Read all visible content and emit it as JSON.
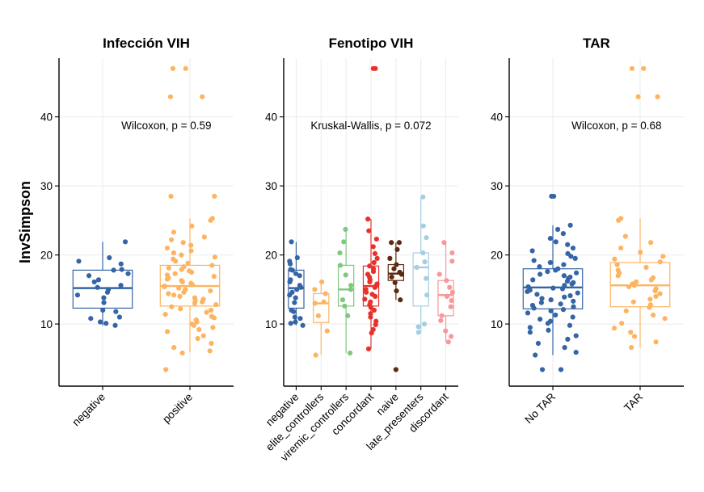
{
  "ylabel": "InvSimpson",
  "chart_data": [
    {
      "type": "box",
      "title": "Infección VIH",
      "xlabel": "",
      "ylabel": "InvSimpson",
      "ylim": [
        1.0,
        48.5
      ],
      "yticks": [
        10,
        20,
        30,
        40
      ],
      "grid": true,
      "annotation": "Wilcoxon, p = 0.59",
      "annotation_xy": [
        1.73,
        38.8
      ],
      "categories": [
        "negative",
        "positive"
      ],
      "colors": [
        "#3565a6",
        "#fdb462"
      ],
      "boxes": [
        {
          "min": 9.8,
          "q1": 12.3,
          "median": 15.2,
          "q3": 17.8,
          "max": 21.9
        },
        {
          "min": 5.9,
          "q1": 12.6,
          "median": 15.5,
          "q3": 18.5,
          "max": 25.3
        }
      ],
      "points": [
        [
          9.8,
          10.1,
          10.3,
          10.8,
          11.0,
          11.8,
          12.0,
          13.1,
          13.8,
          14.2,
          14.6,
          15.0,
          15.3,
          15.6,
          16.1,
          16.4,
          17.0,
          17.3,
          17.8,
          17.9,
          18.7,
          19.1,
          19.6,
          21.9
        ],
        [
          3.4,
          5.8,
          6.1,
          6.6,
          7.2,
          7.9,
          8.3,
          8.9,
          9.2,
          9.5,
          9.8,
          10.0,
          10.3,
          10.6,
          10.9,
          11.1,
          11.4,
          11.7,
          12.0,
          12.2,
          12.5,
          12.8,
          13.0,
          13.2,
          13.4,
          13.6,
          13.8,
          14.0,
          14.2,
          14.4,
          14.6,
          14.8,
          15.0,
          15.2,
          15.4,
          15.5,
          15.7,
          15.9,
          16.1,
          16.3,
          16.5,
          16.7,
          16.9,
          17.1,
          17.3,
          17.5,
          17.7,
          17.9,
          18.1,
          18.3,
          18.5,
          18.8,
          19.1,
          19.4,
          19.7,
          20.0,
          20.3,
          20.6,
          21.0,
          21.4,
          21.8,
          22.2,
          22.6,
          23.3,
          24.2,
          25.0,
          25.3,
          28.5,
          28.5,
          42.9,
          42.9,
          47.0,
          47.0
        ]
      ]
    },
    {
      "type": "box",
      "title": "Fenotipo VIH",
      "xlabel": "",
      "ylabel": "",
      "ylim": [
        1.0,
        48.5
      ],
      "yticks": [
        10,
        20,
        30,
        40
      ],
      "grid": true,
      "annotation": "Kruskal-Wallis, p = 0.072",
      "annotation_xy": [
        4.0,
        38.8
      ],
      "categories": [
        "negative",
        "elite_controllers",
        "viremic_controllers",
        "concordant",
        "naive",
        "late_presenters",
        "discordant"
      ],
      "colors": [
        "#3565a6",
        "#fdb462",
        "#7fc97f",
        "#e8312a",
        "#5c2a0e",
        "#a6cee3",
        "#f6999b"
      ],
      "boxes": [
        {
          "min": 9.8,
          "q1": 12.3,
          "median": 15.2,
          "q3": 17.8,
          "max": 21.9
        },
        {
          "min": 5.5,
          "q1": 10.2,
          "median": 13.0,
          "q3": 14.4,
          "max": 16.1
        },
        {
          "min": 5.8,
          "q1": 12.6,
          "median": 15.0,
          "q3": 18.5,
          "max": 23.7
        },
        {
          "min": 6.4,
          "q1": 12.6,
          "median": 15.5,
          "q3": 18.4,
          "max": 25.2
        },
        {
          "min": 13.5,
          "q1": 16.3,
          "median": 17.3,
          "q3": 18.6,
          "max": 21.8
        },
        {
          "min": 8.8,
          "q1": 12.6,
          "median": 18.2,
          "q3": 20.3,
          "max": 28.4
        },
        {
          "min": 7.4,
          "q1": 11.2,
          "median": 14.2,
          "q3": 16.3,
          "max": 21.8
        }
      ],
      "points": [
        [
          9.8,
          10.1,
          10.3,
          10.8,
          11.0,
          11.8,
          12.0,
          13.1,
          13.8,
          14.2,
          14.6,
          15.0,
          15.3,
          15.6,
          16.1,
          16.4,
          17.0,
          17.3,
          17.8,
          17.9,
          18.7,
          19.1,
          19.6,
          21.9
        ],
        [
          5.5,
          9.0,
          11.2,
          13.0,
          13.2,
          14.4,
          15.0,
          16.1
        ],
        [
          5.8,
          11.2,
          12.6,
          13.5,
          15.0,
          15.6,
          17.1,
          18.5,
          20.3,
          21.9,
          23.7
        ],
        [
          6.4,
          8.7,
          9.2,
          9.9,
          10.4,
          11.0,
          11.5,
          12.0,
          12.4,
          12.8,
          13.2,
          13.6,
          14.0,
          14.3,
          14.6,
          15.0,
          15.3,
          15.5,
          15.8,
          16.1,
          16.4,
          16.8,
          17.2,
          17.6,
          18.0,
          18.4,
          18.9,
          19.5,
          20.2,
          21.2,
          22.3,
          23.5,
          25.2,
          47.0,
          47.0
        ],
        [
          3.4,
          13.5,
          14.8,
          16.0,
          16.8,
          17.2,
          17.5,
          18.0,
          18.6,
          19.5,
          20.8,
          21.8,
          21.8
        ],
        [
          8.8,
          9.6,
          10.0,
          14.2,
          16.6,
          18.2,
          19.0,
          20.3,
          22.5,
          24.2,
          28.4
        ],
        [
          7.4,
          8.2,
          9.0,
          10.5,
          11.2,
          12.5,
          13.4,
          14.0,
          14.6,
          15.3,
          16.3,
          17.2,
          19.1,
          20.3,
          21.8
        ]
      ]
    },
    {
      "type": "box",
      "title": "TAR",
      "xlabel": "",
      "ylabel": "",
      "ylim": [
        1.0,
        48.5
      ],
      "yticks": [
        10,
        20,
        30,
        40
      ],
      "grid": true,
      "annotation": "Wilcoxon, p = 0.68",
      "annotation_xy": [
        1.73,
        38.8
      ],
      "categories": [
        "No TAR",
        "TAR"
      ],
      "colors": [
        "#3565a6",
        "#fdb462"
      ],
      "boxes": [
        {
          "min": 5.5,
          "q1": 12.2,
          "median": 15.3,
          "q3": 18.0,
          "max": 24.3
        },
        {
          "min": 6.6,
          "q1": 12.5,
          "median": 15.6,
          "q3": 18.9,
          "max": 25.3
        }
      ],
      "points": [
        [
          3.4,
          3.4,
          5.5,
          5.9,
          6.6,
          7.2,
          7.8,
          8.3,
          8.8,
          9.1,
          9.5,
          9.8,
          10.1,
          10.4,
          10.7,
          11.0,
          11.3,
          11.6,
          11.9,
          12.1,
          12.3,
          12.5,
          12.7,
          12.9,
          13.1,
          13.3,
          13.5,
          13.7,
          13.9,
          14.1,
          14.3,
          14.5,
          14.7,
          14.9,
          15.1,
          15.2,
          15.4,
          15.6,
          15.8,
          16.0,
          16.2,
          16.4,
          16.6,
          16.8,
          17.0,
          17.2,
          17.4,
          17.6,
          17.8,
          18.0,
          18.3,
          18.6,
          18.9,
          19.2,
          19.5,
          19.8,
          20.2,
          20.6,
          21.0,
          21.5,
          21.9,
          22.4,
          23.1,
          23.7,
          24.3,
          28.5,
          28.5
        ],
        [
          6.6,
          7.4,
          8.2,
          8.8,
          9.4,
          10.1,
          10.8,
          11.3,
          11.9,
          12.4,
          12.8,
          13.2,
          13.6,
          14.0,
          14.4,
          14.8,
          15.1,
          15.4,
          15.6,
          15.8,
          16.1,
          16.4,
          16.7,
          17.0,
          17.4,
          17.8,
          18.2,
          18.6,
          19.0,
          19.4,
          19.8,
          20.4,
          21.0,
          21.8,
          22.7,
          25.0,
          25.3,
          42.9,
          42.9,
          47.0,
          47.0
        ]
      ]
    }
  ]
}
